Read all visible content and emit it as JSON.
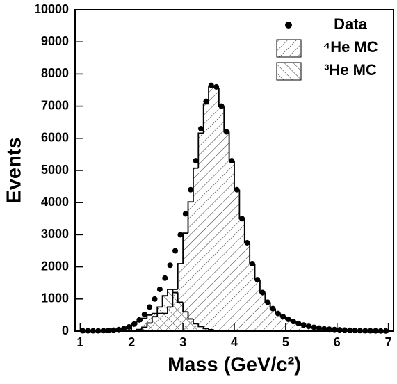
{
  "chart_data": {
    "type": "histogram",
    "xlabel": "Mass (GeV/c²)",
    "ylabel": "Events",
    "xlim": [
      0.9,
      7.1
    ],
    "ylim": [
      0,
      10000
    ],
    "xticks": [
      1,
      2,
      3,
      4,
      5,
      6,
      7
    ],
    "yticks": [
      0,
      1000,
      2000,
      3000,
      4000,
      5000,
      6000,
      7000,
      8000,
      9000,
      10000
    ],
    "legend": "upper right",
    "bins": [
      1,
      1.1,
      1.2,
      1.3,
      1.4,
      1.5,
      1.6,
      1.7,
      1.8,
      1.9,
      2,
      2.1,
      2.2,
      2.3,
      2.4,
      2.5,
      2.6,
      2.7,
      2.8,
      2.9,
      3,
      3.1,
      3.2,
      3.3,
      3.4,
      3.5,
      3.6,
      3.7,
      3.8,
      3.9,
      4,
      4.1,
      4.2,
      4.3,
      4.4,
      4.5,
      4.6,
      4.7,
      4.8,
      4.9,
      5,
      5.1,
      5.2,
      5.3,
      5.4,
      5.5,
      5.6,
      5.7,
      5.8,
      5.9,
      6,
      6.1,
      6.2,
      6.3,
      6.4,
      6.5,
      6.6,
      6.7,
      6.8,
      6.9,
      7
    ],
    "series": [
      {
        "name": "Data",
        "style": "points",
        "color": "#000000",
        "values": [
          10,
          10,
          10,
          10,
          15,
          20,
          30,
          50,
          80,
          130,
          220,
          350,
          520,
          750,
          1000,
          1300,
          1650,
          2050,
          2500,
          3000,
          3650,
          4400,
          5300,
          6300,
          7150,
          7650,
          7600,
          7000,
          6200,
          5300,
          4400,
          3500,
          2750,
          2100,
          1600,
          1200,
          900,
          700,
          550,
          450,
          370,
          300,
          240,
          190,
          150,
          120,
          95,
          75,
          60,
          50,
          40,
          32,
          26,
          20,
          16,
          12,
          10,
          8,
          6,
          5
        ]
      },
      {
        "name": "⁴He MC",
        "style": "hatch-forward",
        "color": "#000000",
        "values": [
          10,
          10,
          10,
          10,
          15,
          20,
          30,
          50,
          80,
          130,
          200,
          300,
          400,
          500,
          550,
          550,
          550,
          750,
          1300,
          2100,
          3050,
          4020,
          5070,
          6160,
          7070,
          7605,
          7575,
          6988,
          6200,
          5300,
          4400,
          3500,
          2750,
          2100,
          1600,
          1200,
          900,
          700,
          550,
          450,
          370,
          300,
          240,
          190,
          150,
          120,
          95,
          75,
          60,
          50,
          40,
          32,
          26,
          20,
          16,
          12,
          10,
          8,
          6,
          5
        ]
      },
      {
        "name": "³He MC",
        "style": "hatch-back",
        "color": "#000000",
        "values": [
          0,
          0,
          0,
          0,
          0,
          0,
          0,
          0,
          0,
          0,
          20,
          50,
          120,
          250,
          450,
          750,
          1100,
          1300,
          1200,
          900,
          600,
          380,
          230,
          140,
          80,
          45,
          25,
          12,
          0,
          0,
          0,
          0,
          0,
          0,
          0,
          0,
          0,
          0,
          0,
          0,
          0,
          0,
          0,
          0,
          0,
          0,
          0,
          0,
          0,
          0,
          0,
          0,
          0,
          0,
          0,
          0,
          0,
          0,
          0,
          0
        ]
      }
    ]
  }
}
